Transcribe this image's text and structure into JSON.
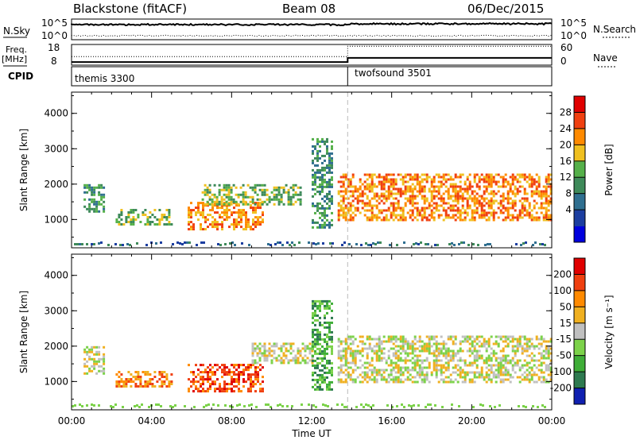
{
  "header": {
    "station": "Blackstone (fitACF)",
    "beam": "Beam 08",
    "date": "06/Dec/2015"
  },
  "top_panels": {
    "nsky_label": "N.Sky",
    "nsky_ticks": [
      "10^5",
      "10^0"
    ],
    "nsearch_label": "N.Search",
    "freq_label": "Freq.",
    "freq_unit": "[MHz]",
    "freq_ticks": [
      "18",
      "8"
    ],
    "nave_label": "Nave",
    "nave_ticks": [
      "60",
      "0"
    ],
    "cpid_label": "CPID",
    "cpid_modes": [
      {
        "name": "themis 3300",
        "start_hour": 0
      },
      {
        "name": "twofsound 3501",
        "start_hour": 14
      }
    ],
    "freq_series": {
      "hours": [
        0,
        13.8,
        13.8,
        24
      ],
      "values": [
        9.5,
        9.5,
        11.5,
        11.5
      ]
    },
    "nave_series": {
      "hours": [
        0,
        13.8,
        13.8,
        24
      ],
      "values": [
        25,
        25,
        55,
        55
      ]
    }
  },
  "chart_data": [
    {
      "type": "heatmap",
      "name": "power-panel",
      "ylabel": "Slant Range [km]",
      "yticks": [
        1000,
        2000,
        3000,
        4000
      ],
      "ylim": [
        200,
        4600
      ],
      "xlim": [
        0,
        24
      ],
      "colorbar": {
        "label": "Power [dB]",
        "ticks": [
          "28",
          "24",
          "20",
          "16",
          "12",
          "8",
          "4"
        ],
        "colors": [
          "#0000dd",
          "#1c3ea0",
          "#2f6f90",
          "#3e8a5a",
          "#55b04a",
          "#f0c020",
          "#ff8a00",
          "#f04010",
          "#e00000"
        ]
      },
      "echo_regions": [
        {
          "x": [
            0.6,
            1.6
          ],
          "y": [
            1200,
            2000
          ],
          "level": 3
        },
        {
          "x": [
            2.2,
            5.0
          ],
          "y": [
            850,
            1300
          ],
          "level": 4
        },
        {
          "x": [
            5.8,
            9.5
          ],
          "y": [
            700,
            1500
          ],
          "level": 6
        },
        {
          "x": [
            6.5,
            11.5
          ],
          "y": [
            1400,
            2000
          ],
          "level": 4
        },
        {
          "x": [
            12.0,
            13.0
          ],
          "y": [
            800,
            3300
          ],
          "level": 3
        },
        {
          "x": [
            13.3,
            24.0
          ],
          "y": [
            1000,
            2300
          ],
          "level": 6
        }
      ],
      "vertical_marker_hour": 13.8
    },
    {
      "type": "heatmap",
      "name": "velocity-panel",
      "ylabel": "Slant Range [km]",
      "yticks": [
        1000,
        2000,
        3000,
        4000
      ],
      "ylim": [
        200,
        4600
      ],
      "xlim": [
        0,
        24
      ],
      "xticks": [
        "00:00",
        "04:00",
        "08:00",
        "12:00",
        "16:00",
        "20:00",
        "00:00"
      ],
      "xlabel": "Time UT",
      "colorbar": {
        "label": "Velocity [m s⁻¹]",
        "ticks": [
          "200",
          "100",
          "50",
          "15",
          "-15",
          "-50",
          "-100",
          "-200"
        ],
        "colors": [
          "#1020b0",
          "#2e7a50",
          "#3fae38",
          "#7cd24a",
          "#c0c0c0",
          "#f0b020",
          "#ff8a00",
          "#f04010",
          "#e00000"
        ]
      },
      "echo_regions": [
        {
          "x": [
            0.6,
            1.6
          ],
          "y": [
            1200,
            2000
          ],
          "level": 4
        },
        {
          "x": [
            2.2,
            5.0
          ],
          "y": [
            850,
            1300
          ],
          "level": 6
        },
        {
          "x": [
            5.8,
            9.5
          ],
          "y": [
            700,
            1500
          ],
          "level": 7
        },
        {
          "x": [
            9.0,
            12.0
          ],
          "y": [
            1500,
            2100
          ],
          "level": 4
        },
        {
          "x": [
            12.0,
            13.0
          ],
          "y": [
            800,
            3300
          ],
          "level": 2
        },
        {
          "x": [
            13.3,
            24.0
          ],
          "y": [
            1000,
            2300
          ],
          "level": 4
        }
      ],
      "vertical_marker_hour": 13.8
    }
  ]
}
